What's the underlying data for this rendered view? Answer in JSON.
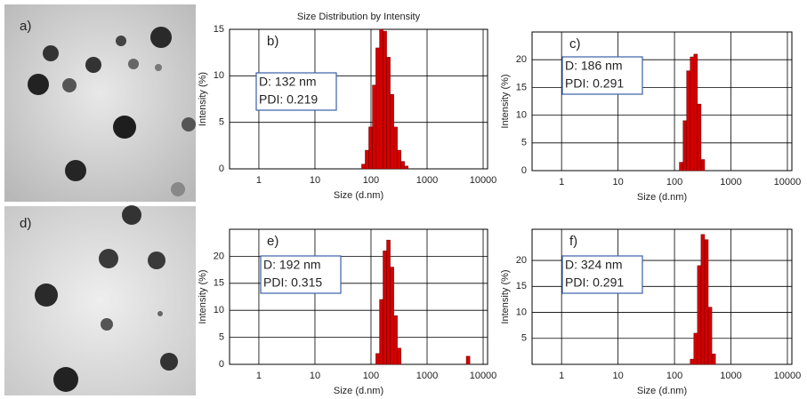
{
  "images": [
    {
      "label": "a)"
    },
    {
      "label": "d)"
    }
  ],
  "chart_data": [
    {
      "type": "histogram",
      "label": "b)",
      "title": "Size Distribution by Intensity",
      "x_label": "Size (d.nm)",
      "y_label": "Intensity (%)",
      "annotation": [
        "D: 132 nm",
        "PDI:  0.219"
      ],
      "color": "#d40000",
      "log_x": true,
      "grid": true,
      "xlim": [
        0.3,
        12000
      ],
      "xticks": [
        1,
        10,
        100,
        1000,
        10000
      ],
      "ylim": [
        0,
        15
      ],
      "yticks": [
        0,
        5,
        10,
        15
      ],
      "bins": [
        68.1,
        78.8,
        91.3,
        106,
        122,
        142,
        164,
        190,
        220,
        255,
        295,
        342,
        396,
        459
      ],
      "counts": [
        0.5,
        2,
        4.5,
        9,
        13,
        15,
        14.8,
        12,
        8,
        4.5,
        2,
        0.8,
        0.3
      ]
    },
    {
      "type": "histogram",
      "label": "c)",
      "x_label": "Size (d.nm)",
      "y_label": "Intensity (%)",
      "annotation": [
        "D: 186 nm",
        "PDI:  0.291"
      ],
      "color": "#d40000",
      "log_x": true,
      "grid": true,
      "xlim": [
        0.3,
        12000
      ],
      "xticks": [
        1,
        10,
        100,
        1000,
        10000
      ],
      "ylim": [
        0,
        25
      ],
      "yticks": [
        0,
        5,
        10,
        15,
        20
      ],
      "bins": [
        122,
        142,
        164,
        190,
        220,
        255,
        295,
        342
      ],
      "counts": [
        1.5,
        9,
        18,
        20.5,
        21,
        12,
        2
      ]
    },
    {
      "type": "histogram",
      "label": "e)",
      "x_label": "Size (d.nm)",
      "y_label": "Intensity (%)",
      "annotation": [
        "D: 192 nm",
        "PDI:  0.315"
      ],
      "color": "#d40000",
      "log_x": true,
      "grid": true,
      "xlim": [
        0.3,
        12000
      ],
      "xticks": [
        1,
        10,
        100,
        1000,
        10000
      ],
      "ylim": [
        0,
        25
      ],
      "yticks": [
        0,
        5,
        10,
        15,
        20
      ],
      "bins": [
        122,
        142,
        164,
        190,
        220,
        255,
        295,
        342,
        5000,
        5800
      ],
      "counts": [
        2,
        12,
        21,
        23,
        18,
        9,
        3,
        0,
        1.5
      ]
    },
    {
      "type": "histogram",
      "label": "f)",
      "x_label": "Size (d.nm)",
      "y_label": "Intensity (%)",
      "annotation": [
        "D: 324 nm",
        "PDI:  0.291"
      ],
      "color": "#d40000",
      "log_x": true,
      "grid": true,
      "xlim": [
        0.3,
        12000
      ],
      "xticks": [
        1,
        10,
        100,
        1000,
        10000
      ],
      "ylim": [
        0,
        26
      ],
      "yticks": [
        5,
        10,
        15,
        20
      ],
      "bins": [
        190,
        220,
        255,
        295,
        342,
        396,
        459,
        532
      ],
      "counts": [
        1,
        6,
        19,
        25,
        24,
        11,
        2
      ]
    }
  ]
}
